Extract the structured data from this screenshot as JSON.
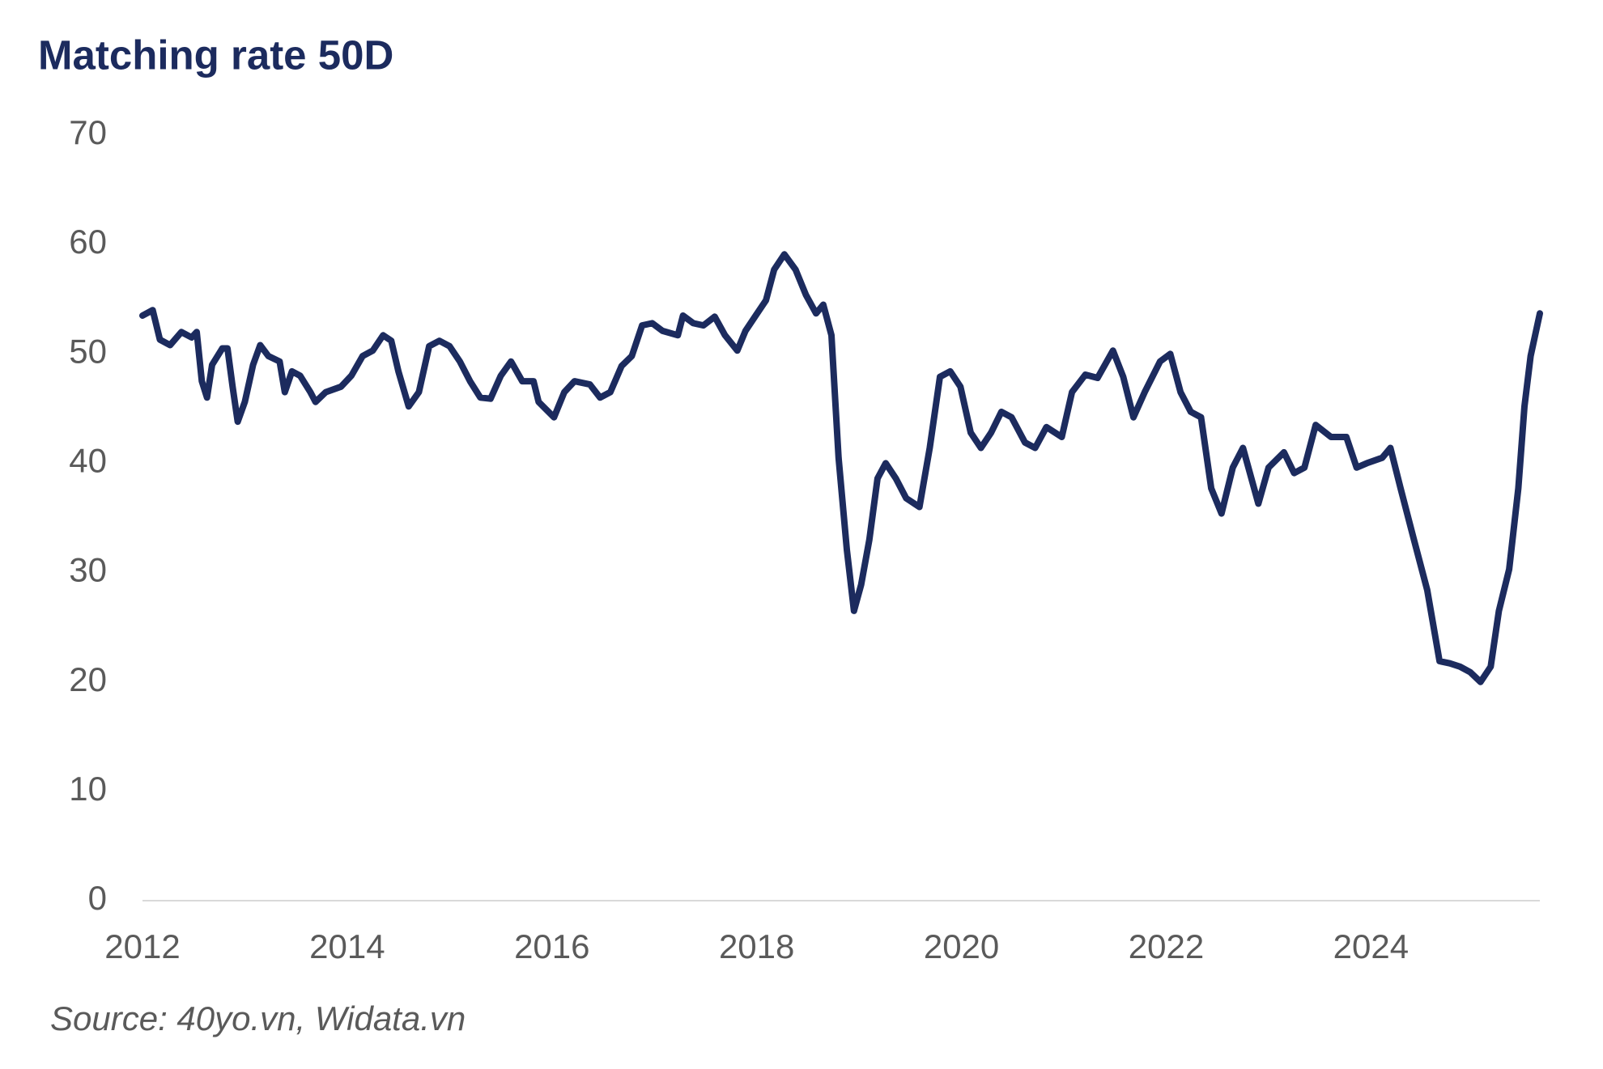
{
  "chart_data": {
    "type": "line",
    "title": "Matching rate 50D",
    "source": "Source: 40yo.vn, Widata.vn",
    "x": [
      2012.0,
      2012.1,
      2012.17,
      2012.27,
      2012.38,
      2012.48,
      2012.53,
      2012.58,
      2012.63,
      2012.68,
      2012.78,
      2012.83,
      2012.88,
      2012.93,
      2013.0,
      2013.08,
      2013.15,
      2013.23,
      2013.34,
      2013.39,
      2013.46,
      2013.54,
      2013.64,
      2013.69,
      2013.79,
      2013.94,
      2014.04,
      2014.15,
      2014.25,
      2014.35,
      2014.43,
      2014.5,
      2014.6,
      2014.7,
      2014.8,
      2014.9,
      2015.0,
      2015.1,
      2015.2,
      2015.3,
      2015.4,
      2015.5,
      2015.6,
      2015.71,
      2015.82,
      2015.87,
      2016.02,
      2016.12,
      2016.22,
      2016.37,
      2016.47,
      2016.57,
      2016.68,
      2016.78,
      2016.88,
      2016.98,
      2017.08,
      2017.23,
      2017.28,
      2017.38,
      2017.48,
      2017.59,
      2017.69,
      2017.81,
      2017.89,
      2017.99,
      2018.09,
      2018.17,
      2018.27,
      2018.38,
      2018.48,
      2018.58,
      2018.65,
      2018.73,
      2018.8,
      2018.88,
      2018.95,
      2019.02,
      2019.1,
      2019.18,
      2019.26,
      2019.36,
      2019.46,
      2019.59,
      2019.69,
      2019.79,
      2019.89,
      2019.99,
      2020.09,
      2020.19,
      2020.29,
      2020.39,
      2020.49,
      2020.62,
      2020.72,
      2020.83,
      2020.98,
      2021.08,
      2021.21,
      2021.33,
      2021.48,
      2021.58,
      2021.68,
      2021.79,
      2021.94,
      2022.04,
      2022.14,
      2022.24,
      2022.34,
      2022.44,
      2022.54,
      2022.65,
      2022.75,
      2022.9,
      2023.0,
      2023.15,
      2023.25,
      2023.35,
      2023.46,
      2023.61,
      2023.76,
      2023.86,
      2023.96,
      2024.11,
      2024.19,
      2024.29,
      2024.42,
      2024.55,
      2024.67,
      2024.77,
      2024.87,
      2024.97,
      2025.07,
      2025.17,
      2025.25,
      2025.35,
      2025.44,
      2025.5,
      2025.56,
      2025.65
    ],
    "series": [
      {
        "name": "Matching rate 50D",
        "color": "#1c2b5e",
        "values": [
          53.5,
          54,
          51.3,
          50.8,
          52,
          51.5,
          52,
          47.5,
          46,
          49,
          50.5,
          50.5,
          47,
          43.8,
          45.6,
          49,
          50.8,
          49.8,
          49.3,
          46.5,
          48.4,
          48,
          46.5,
          45.6,
          46.5,
          47,
          48,
          49.8,
          50.3,
          51.7,
          51.2,
          48.4,
          45.2,
          46.5,
          50.7,
          51.2,
          50.7,
          49.3,
          47.5,
          46,
          45.9,
          48,
          49.3,
          47.5,
          47.5,
          45.6,
          44.2,
          46.5,
          47.5,
          47.2,
          46,
          46.5,
          48.9,
          49.8,
          52.6,
          52.8,
          52.1,
          51.7,
          53.5,
          52.8,
          52.6,
          53.4,
          51.7,
          50.3,
          52.1,
          53.5,
          54.9,
          57.7,
          59.1,
          57.7,
          55.4,
          53.7,
          54.5,
          51.7,
          40.5,
          32.1,
          26.5,
          28.9,
          33,
          38.6,
          40,
          38.6,
          36.8,
          36,
          41.4,
          47.9,
          48.4,
          47,
          42.8,
          41.4,
          42.8,
          44.7,
          44.2,
          41.9,
          41.4,
          43.3,
          42.4,
          46.5,
          48.1,
          47.8,
          50.3,
          47.9,
          44.2,
          46.5,
          49.3,
          50,
          46.5,
          44.7,
          44.2,
          37.7,
          35.4,
          39.6,
          41.4,
          36.3,
          39.6,
          41,
          39.1,
          39.6,
          43.5,
          42.4,
          42.4,
          39.6,
          40,
          40.5,
          41.4,
          37.7,
          33,
          28.4,
          21.9,
          21.7,
          21.4,
          20.9,
          20,
          21.4,
          26.5,
          30.3,
          37.7,
          45.2,
          49.8,
          53.7
        ]
      }
    ],
    "xlim": [
      2012,
      2025.65
    ],
    "xticks": [
      2012,
      2014,
      2016,
      2018,
      2020,
      2022,
      2024
    ],
    "ylim": [
      0,
      70
    ],
    "yticks": [
      0,
      10,
      20,
      30,
      40,
      50,
      60,
      70
    ],
    "grid": false
  }
}
